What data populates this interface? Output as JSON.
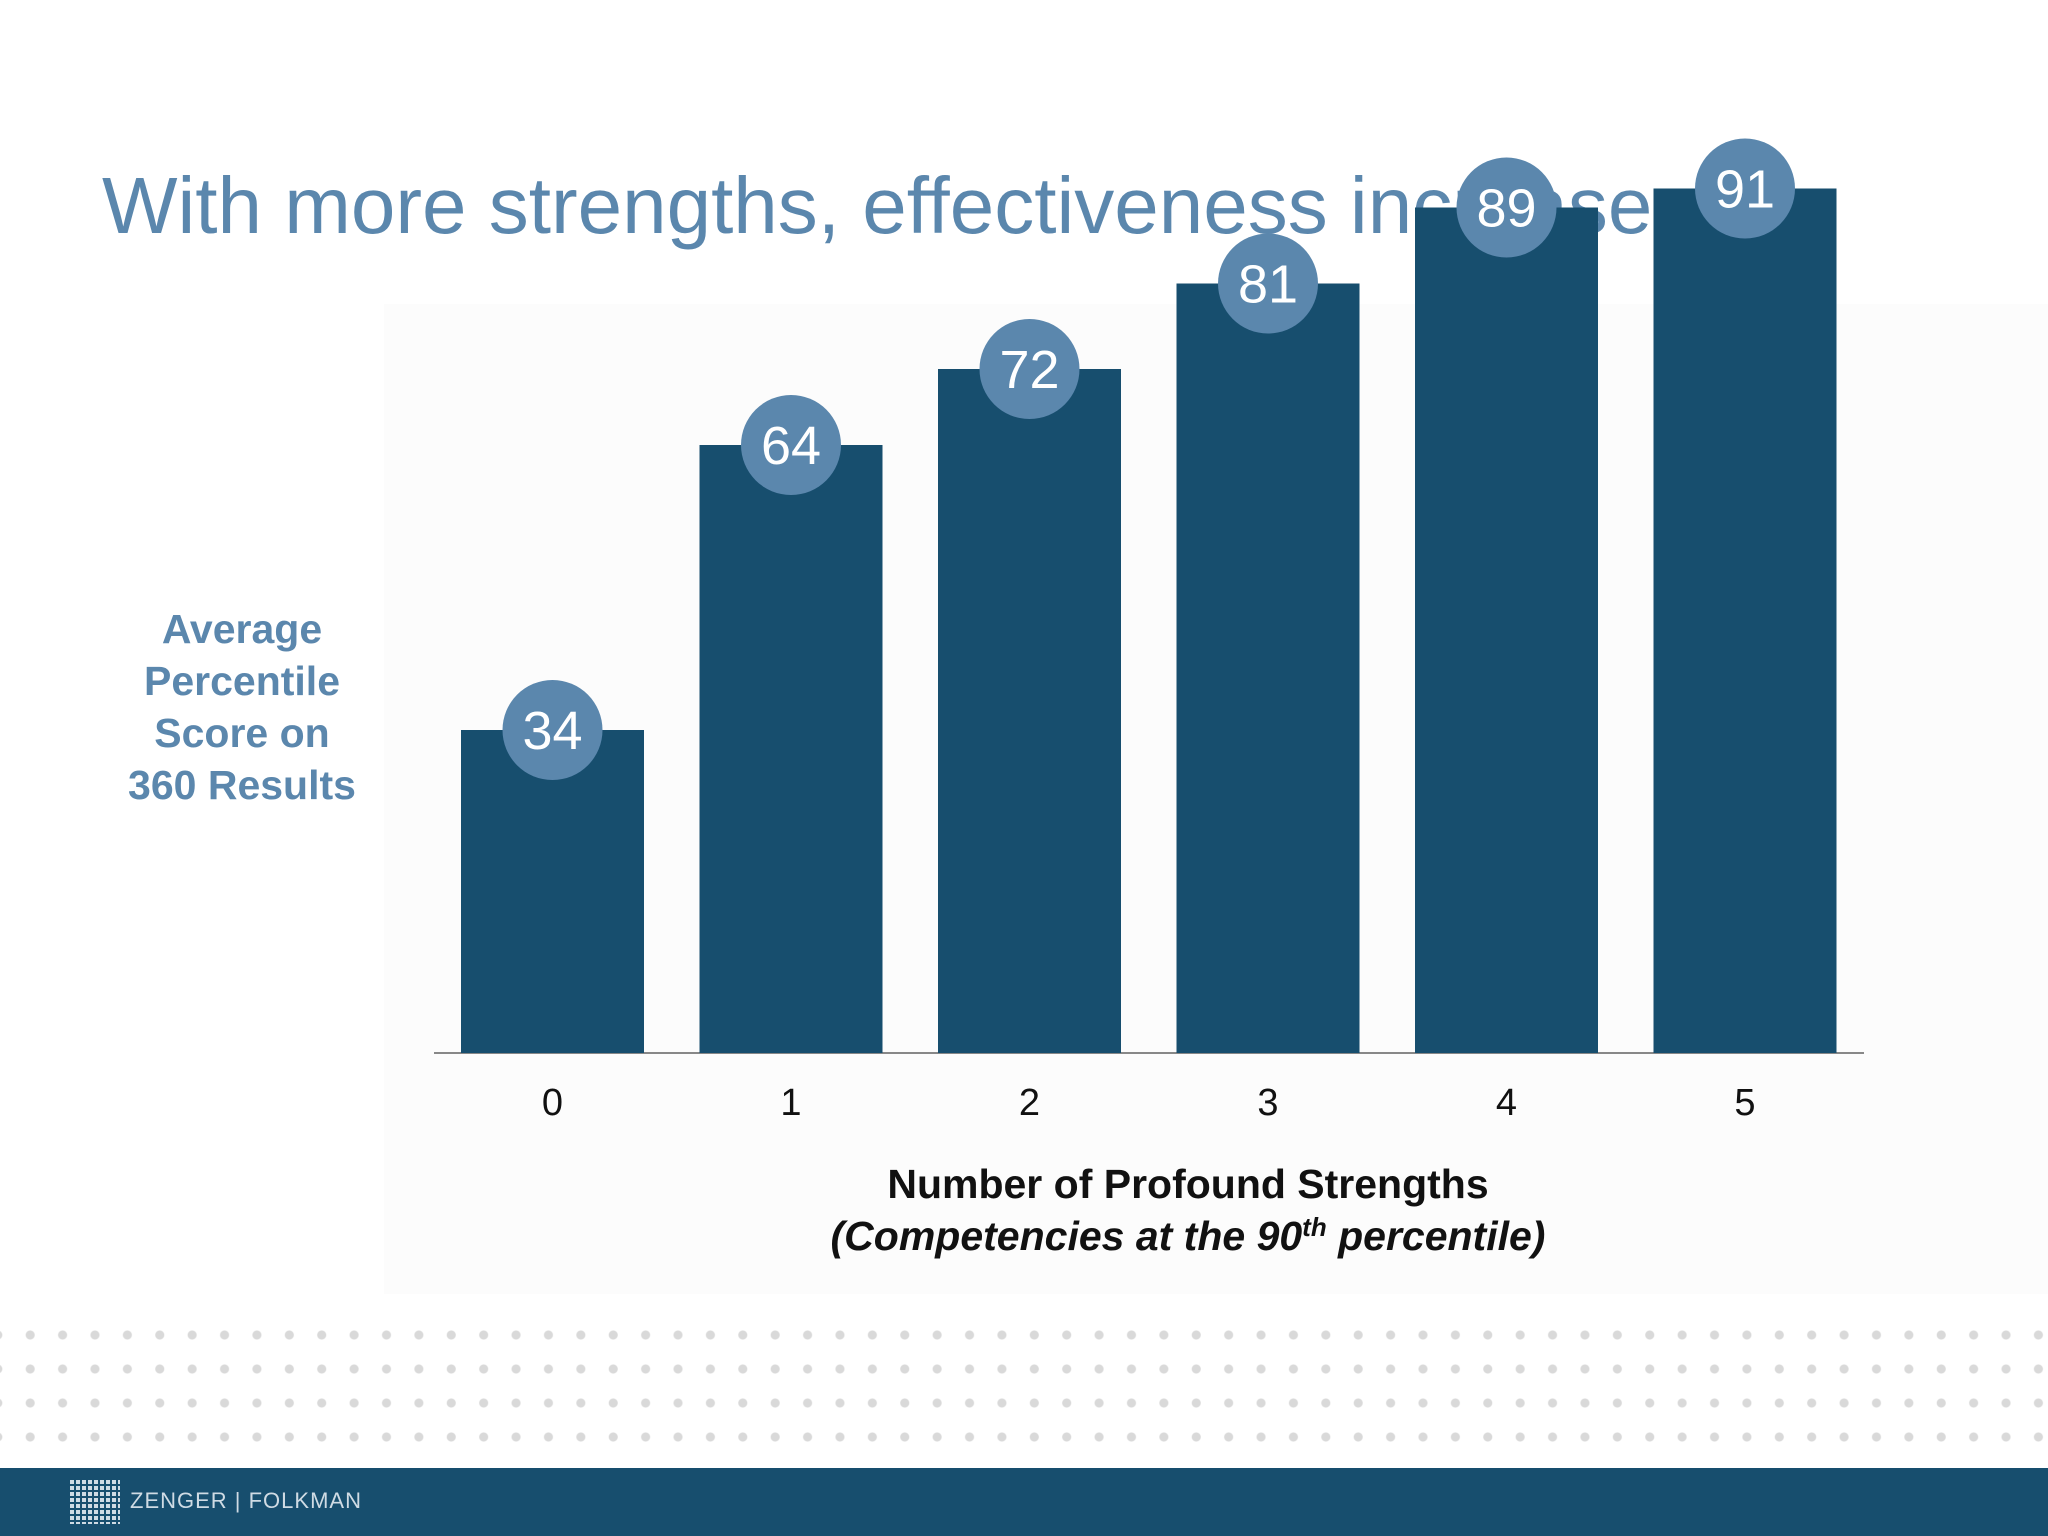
{
  "slide": {
    "title": "With more strengths, effectiveness increases"
  },
  "chart_data": {
    "type": "bar",
    "categories": [
      "0",
      "1",
      "2",
      "3",
      "4",
      "5"
    ],
    "values": [
      34,
      64,
      72,
      81,
      89,
      91
    ],
    "ylabel_lines": [
      "Average",
      "Percentile",
      "Score on",
      "360 Results"
    ],
    "xlabel": "Number of Profound Strengths",
    "xlabel_sub_prefix": "(Competencies at the 90",
    "xlabel_sub_sup": "th",
    "xlabel_sub_suffix": " percentile)",
    "ylim": [
      0,
      100
    ],
    "grid": false,
    "bar_color": "#174e6e",
    "badge_color": "#5b87ad",
    "axis_color": "#888888"
  },
  "footer": {
    "brand": "ZENGER | FOLKMAN",
    "background": "#174e6e"
  }
}
